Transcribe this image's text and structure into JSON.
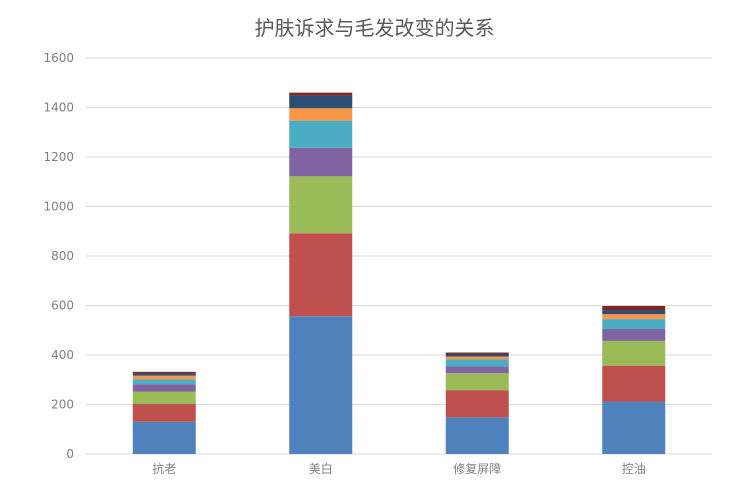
{
  "chart_data": {
    "type": "bar",
    "stacked": true,
    "title": "护肤诉求与毛发改变的关系",
    "xlabel": "",
    "ylabel": "",
    "categories": [
      "抗老",
      "美白",
      "修复屏障",
      "控油"
    ],
    "ylim": [
      0,
      1600
    ],
    "yticks": [
      0,
      200,
      400,
      600,
      800,
      1000,
      1200,
      1400,
      1600
    ],
    "grid": true,
    "series": [
      {
        "color": "#4f81bd",
        "values": [
          130,
          557,
          148,
          212
        ]
      },
      {
        "color": "#c0504d",
        "values": [
          72,
          335,
          110,
          145
        ]
      },
      {
        "color": "#9bbb59",
        "values": [
          50,
          230,
          68,
          100
        ]
      },
      {
        "color": "#8064a2",
        "values": [
          30,
          115,
          28,
          48
        ]
      },
      {
        "color": "#4bacc6",
        "values": [
          20,
          110,
          28,
          40
        ]
      },
      {
        "color": "#f79646",
        "values": [
          15,
          50,
          12,
          20
        ]
      },
      {
        "color": "#2c4d75",
        "values": [
          10,
          50,
          10,
          15
        ]
      },
      {
        "color": "#772c2a",
        "values": [
          5,
          13,
          6,
          18
        ]
      }
    ]
  }
}
